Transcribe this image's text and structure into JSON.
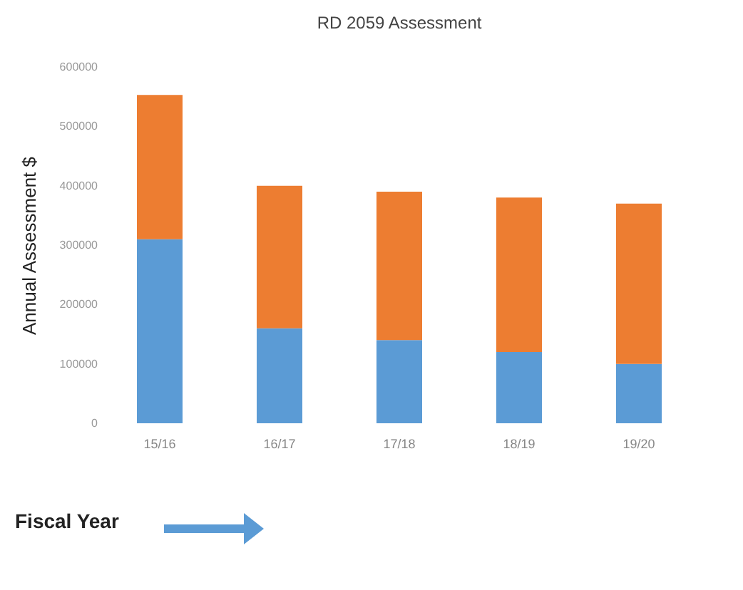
{
  "chart_data": {
    "type": "bar",
    "title": "RD 2059 Assessment",
    "xlabel": "Fiscal Year",
    "ylabel": "Annual Assessment $",
    "categories": [
      "15/16",
      "16/17",
      "17/18",
      "18/19",
      "19/20"
    ],
    "stacked": true,
    "series": [
      {
        "color": "#5b9bd5",
        "values": [
          310000,
          160000,
          140000,
          120000,
          100000
        ]
      },
      {
        "color": "#ed7d31",
        "values": [
          243000,
          240000,
          250000,
          260000,
          270000
        ]
      }
    ],
    "ylim": [
      0,
      600000
    ],
    "yticks": [
      0,
      100000,
      200000,
      300000,
      400000,
      500000,
      600000
    ],
    "grid": false,
    "legend": false
  }
}
